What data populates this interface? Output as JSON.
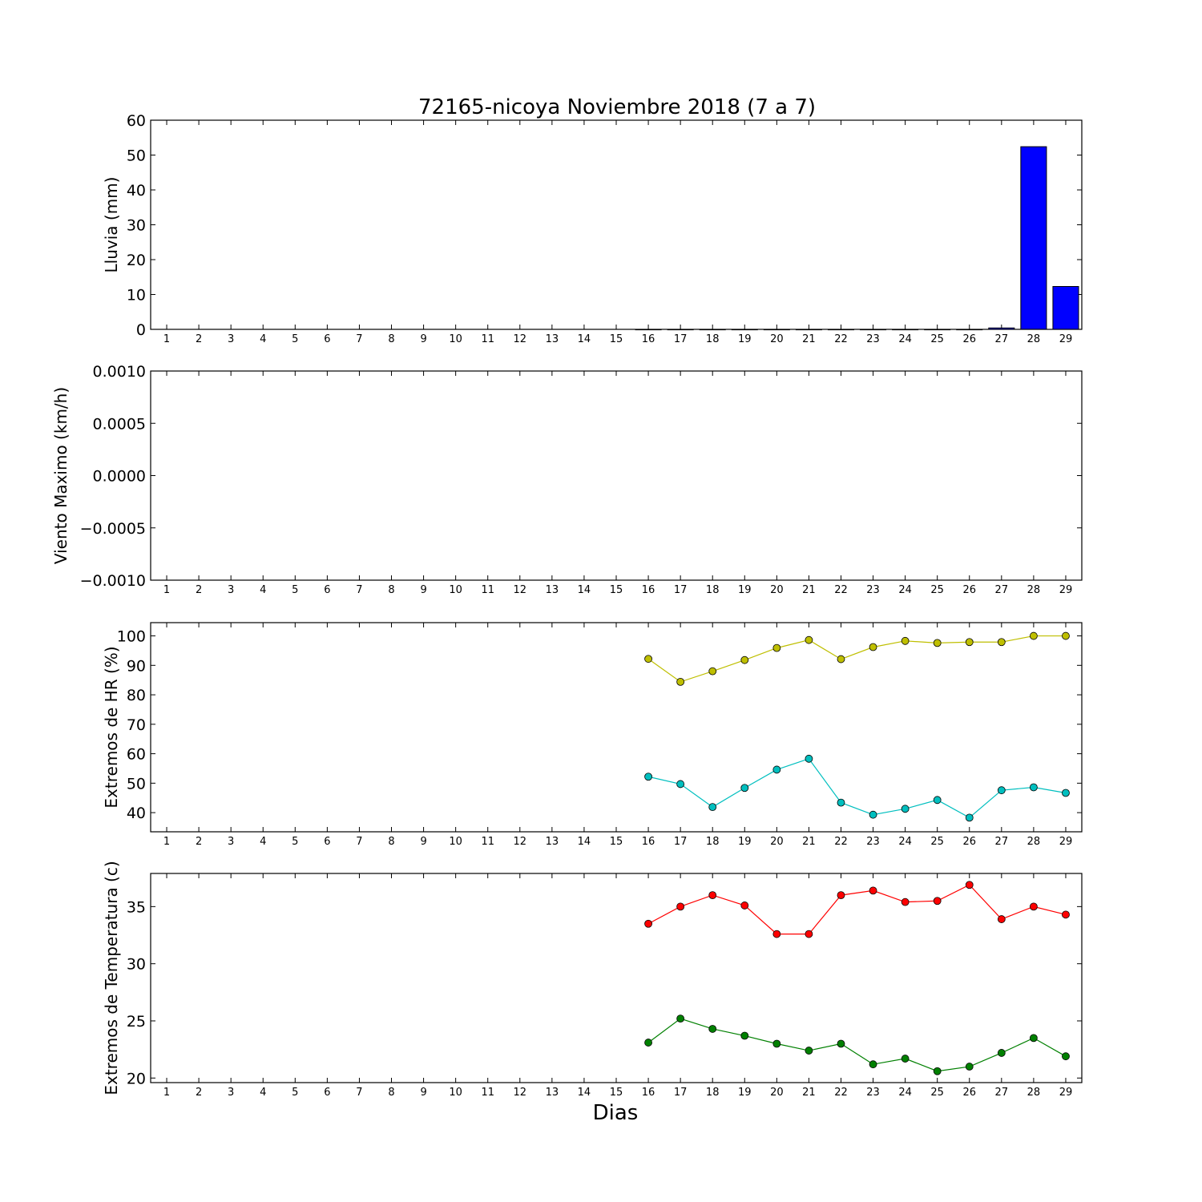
{
  "figure": {
    "title": "72165-nicoya Noviembre 2018  (7 a 7)",
    "xlabel": "Dias"
  },
  "chart_data": [
    {
      "type": "bar",
      "ylabel": "Lluvia (mm)",
      "xlim": [
        0.5,
        29.5
      ],
      "ylim": [
        0,
        60
      ],
      "yticks": [
        0,
        10,
        20,
        30,
        40,
        50,
        60
      ],
      "ytick_labels": [
        "0",
        "10",
        "20",
        "30",
        "40",
        "50",
        "60"
      ],
      "x_tick_labels": [
        "1",
        "2",
        "3",
        "4",
        "5",
        "6",
        "7",
        "8",
        "9",
        "10",
        "11",
        "12",
        "13",
        "14",
        "15",
        "16",
        "17",
        "18",
        "19",
        "20",
        "21",
        "22",
        "23",
        "24",
        "25",
        "26",
        "27",
        "28",
        "29"
      ],
      "grid": false,
      "series": [
        {
          "color": "#0000ff",
          "x": [
            16,
            17,
            18,
            19,
            20,
            21,
            22,
            23,
            24,
            25,
            26,
            27,
            28,
            29
          ],
          "values": [
            0,
            0,
            0,
            0,
            0,
            0,
            0,
            0,
            0,
            0,
            0,
            0.4,
            52.4,
            12.3
          ]
        }
      ]
    },
    {
      "type": "line",
      "ylabel": "Viento Maximo (km/h)",
      "xlim": [
        0.5,
        29.5
      ],
      "ylim": [
        -0.001,
        0.001
      ],
      "yticks": [
        -0.001,
        -0.0005,
        0,
        0.0005,
        0.001
      ],
      "ytick_labels": [
        "−0.0010",
        "−0.0005",
        "0.0000",
        "0.0005",
        "0.0010"
      ],
      "x_tick_labels": [
        "1",
        "2",
        "3",
        "4",
        "5",
        "6",
        "7",
        "8",
        "9",
        "10",
        "11",
        "12",
        "13",
        "14",
        "15",
        "16",
        "17",
        "18",
        "19",
        "20",
        "21",
        "22",
        "23",
        "24",
        "25",
        "26",
        "27",
        "28",
        "29"
      ],
      "grid": false,
      "series": []
    },
    {
      "type": "line",
      "ylabel": "Extremos de HR (%)",
      "xlim": [
        0.5,
        29.5
      ],
      "ylim": [
        33.5,
        104.5
      ],
      "yticks": [
        40,
        50,
        60,
        70,
        80,
        90,
        100
      ],
      "ytick_labels": [
        "40",
        "50",
        "60",
        "70",
        "80",
        "90",
        "100"
      ],
      "x_tick_labels": [
        "1",
        "2",
        "3",
        "4",
        "5",
        "6",
        "7",
        "8",
        "9",
        "10",
        "11",
        "12",
        "13",
        "14",
        "15",
        "16",
        "17",
        "18",
        "19",
        "20",
        "21",
        "22",
        "23",
        "24",
        "25",
        "26",
        "27",
        "28",
        "29"
      ],
      "grid": false,
      "series": [
        {
          "color": "#bfbf00",
          "x": [
            16,
            17,
            18,
            19,
            20,
            21,
            22,
            23,
            24,
            25,
            26,
            27,
            28,
            29
          ],
          "values": [
            92.2,
            84.4,
            88.0,
            91.8,
            95.9,
            98.6,
            92.1,
            96.2,
            98.3,
            97.6,
            97.9,
            97.9,
            100,
            100
          ]
        },
        {
          "color": "#00bfbf",
          "x": [
            16,
            17,
            18,
            19,
            20,
            21,
            22,
            23,
            24,
            25,
            26,
            27,
            28,
            29
          ],
          "values": [
            52.2,
            49.7,
            41.9,
            48.4,
            54.6,
            58.3,
            43.4,
            39.3,
            41.3,
            44.3,
            38.3,
            47.6,
            48.6,
            46.7
          ]
        }
      ]
    },
    {
      "type": "line",
      "ylabel": "Extremos de Temperatura (c)",
      "xlim": [
        0.5,
        29.5
      ],
      "ylim": [
        19.6,
        37.9
      ],
      "yticks": [
        20,
        25,
        30,
        35
      ],
      "ytick_labels": [
        "20",
        "25",
        "30",
        "35"
      ],
      "x_tick_labels": [
        "1",
        "2",
        "3",
        "4",
        "5",
        "6",
        "7",
        "8",
        "9",
        "10",
        "11",
        "12",
        "13",
        "14",
        "15",
        "16",
        "17",
        "18",
        "19",
        "20",
        "21",
        "22",
        "23",
        "24",
        "25",
        "26",
        "27",
        "28",
        "29"
      ],
      "grid": false,
      "series": [
        {
          "color": "#ff0000",
          "x": [
            16,
            17,
            18,
            19,
            20,
            21,
            22,
            23,
            24,
            25,
            26,
            27,
            28,
            29
          ],
          "values": [
            33.5,
            35.0,
            36.0,
            35.1,
            32.6,
            32.6,
            36.0,
            36.4,
            35.4,
            35.5,
            36.9,
            33.9,
            35.0,
            34.3
          ]
        },
        {
          "color": "#008000",
          "x": [
            16,
            17,
            18,
            19,
            20,
            21,
            22,
            23,
            24,
            25,
            26,
            27,
            28,
            29
          ],
          "values": [
            23.1,
            25.2,
            24.3,
            23.7,
            23.0,
            22.4,
            23.0,
            21.2,
            21.7,
            20.6,
            21.0,
            22.2,
            23.5,
            21.9
          ]
        }
      ]
    }
  ]
}
